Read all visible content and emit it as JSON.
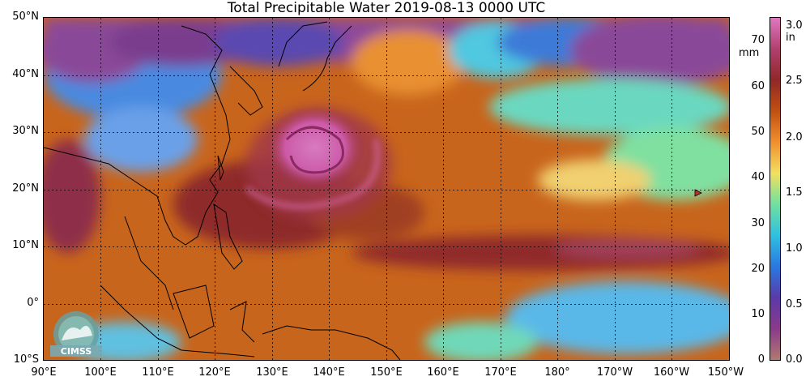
{
  "title": "Total Precipitable Water  2019-08-13 0000 UTC",
  "lat_labels": [
    "50°N",
    "40°N",
    "30°N",
    "20°N",
    "10°N",
    "0°",
    "10°S"
  ],
  "lon_labels": [
    "90°E",
    "100°E",
    "110°E",
    "120°E",
    "130°E",
    "140°E",
    "150°E",
    "160°E",
    "170°E",
    "180°",
    "170°W",
    "160°W",
    "150°W"
  ],
  "colorbar": {
    "mm_ticks": [
      "70",
      "60",
      "50",
      "40",
      "30",
      "20",
      "10",
      "0"
    ],
    "mm_unit": "mm",
    "in_ticks": [
      "3.0",
      "2.5",
      "2.0",
      "1.5",
      "1.0",
      "0.5",
      "0.0"
    ],
    "in_unit": "in",
    "colors": [
      "#b07a70",
      "#8a3a8a",
      "#5a3aa8",
      "#2a78e0",
      "#30c0e0",
      "#70e0a0",
      "#f0e060",
      "#f09030",
      "#c05010",
      "#902828",
      "#b04070",
      "#e078c0"
    ]
  },
  "logo_text": "CIMSS",
  "colors": {
    "ocean_moist": "#c96a1e",
    "very_moist": "#8e2b2b",
    "typhoon": "#d870b8",
    "dry": "#5aa8e8",
    "very_dry": "#7a3f8a"
  }
}
